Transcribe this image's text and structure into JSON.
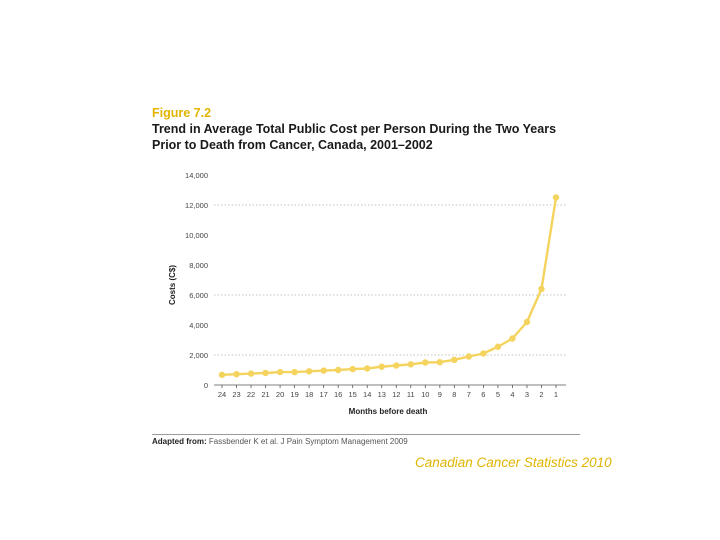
{
  "figure": {
    "label": "Figure 7.2",
    "title_line1": "Trend in Average Total Public Cost per Person During the Two Years",
    "title_line2": "Prior to Death from Cancer, Canada, 2001–2002"
  },
  "source": {
    "label": "Adapted from:",
    "text": "Fassbender K et al. J Pain Symptom Management 2009"
  },
  "brand": "Canadian Cancer Statistics 2010",
  "colors": {
    "series": "#f4d35e",
    "accent": "#e0b400",
    "grid": "#b0b0b0",
    "axis": "#555555"
  },
  "chart_data": {
    "type": "line",
    "title": "",
    "xlabel": "Months before death",
    "ylabel": "Costs (C$)",
    "categories": [
      "24",
      "23",
      "22",
      "21",
      "20",
      "19",
      "18",
      "17",
      "16",
      "15",
      "14",
      "13",
      "12",
      "11",
      "10",
      "9",
      "8",
      "7",
      "6",
      "5",
      "4",
      "3",
      "2",
      "1"
    ],
    "series": [
      {
        "name": "Average total public cost",
        "values": [
          680,
          720,
          760,
          800,
          860,
          860,
          910,
          960,
          1000,
          1060,
          1100,
          1220,
          1300,
          1380,
          1500,
          1520,
          1680,
          1900,
          2100,
          2550,
          3100,
          4200,
          6400,
          12500
        ]
      }
    ],
    "ylim": [
      0,
      14000
    ],
    "yticks": [
      0,
      2000,
      4000,
      6000,
      8000,
      10000,
      12000,
      14000
    ],
    "ytick_labels": [
      "0",
      "2,000",
      "4,000",
      "6,000",
      "8,000",
      "10,000",
      "12,000",
      "14,000"
    ],
    "gridlines": [
      2000,
      6000,
      12000
    ]
  }
}
